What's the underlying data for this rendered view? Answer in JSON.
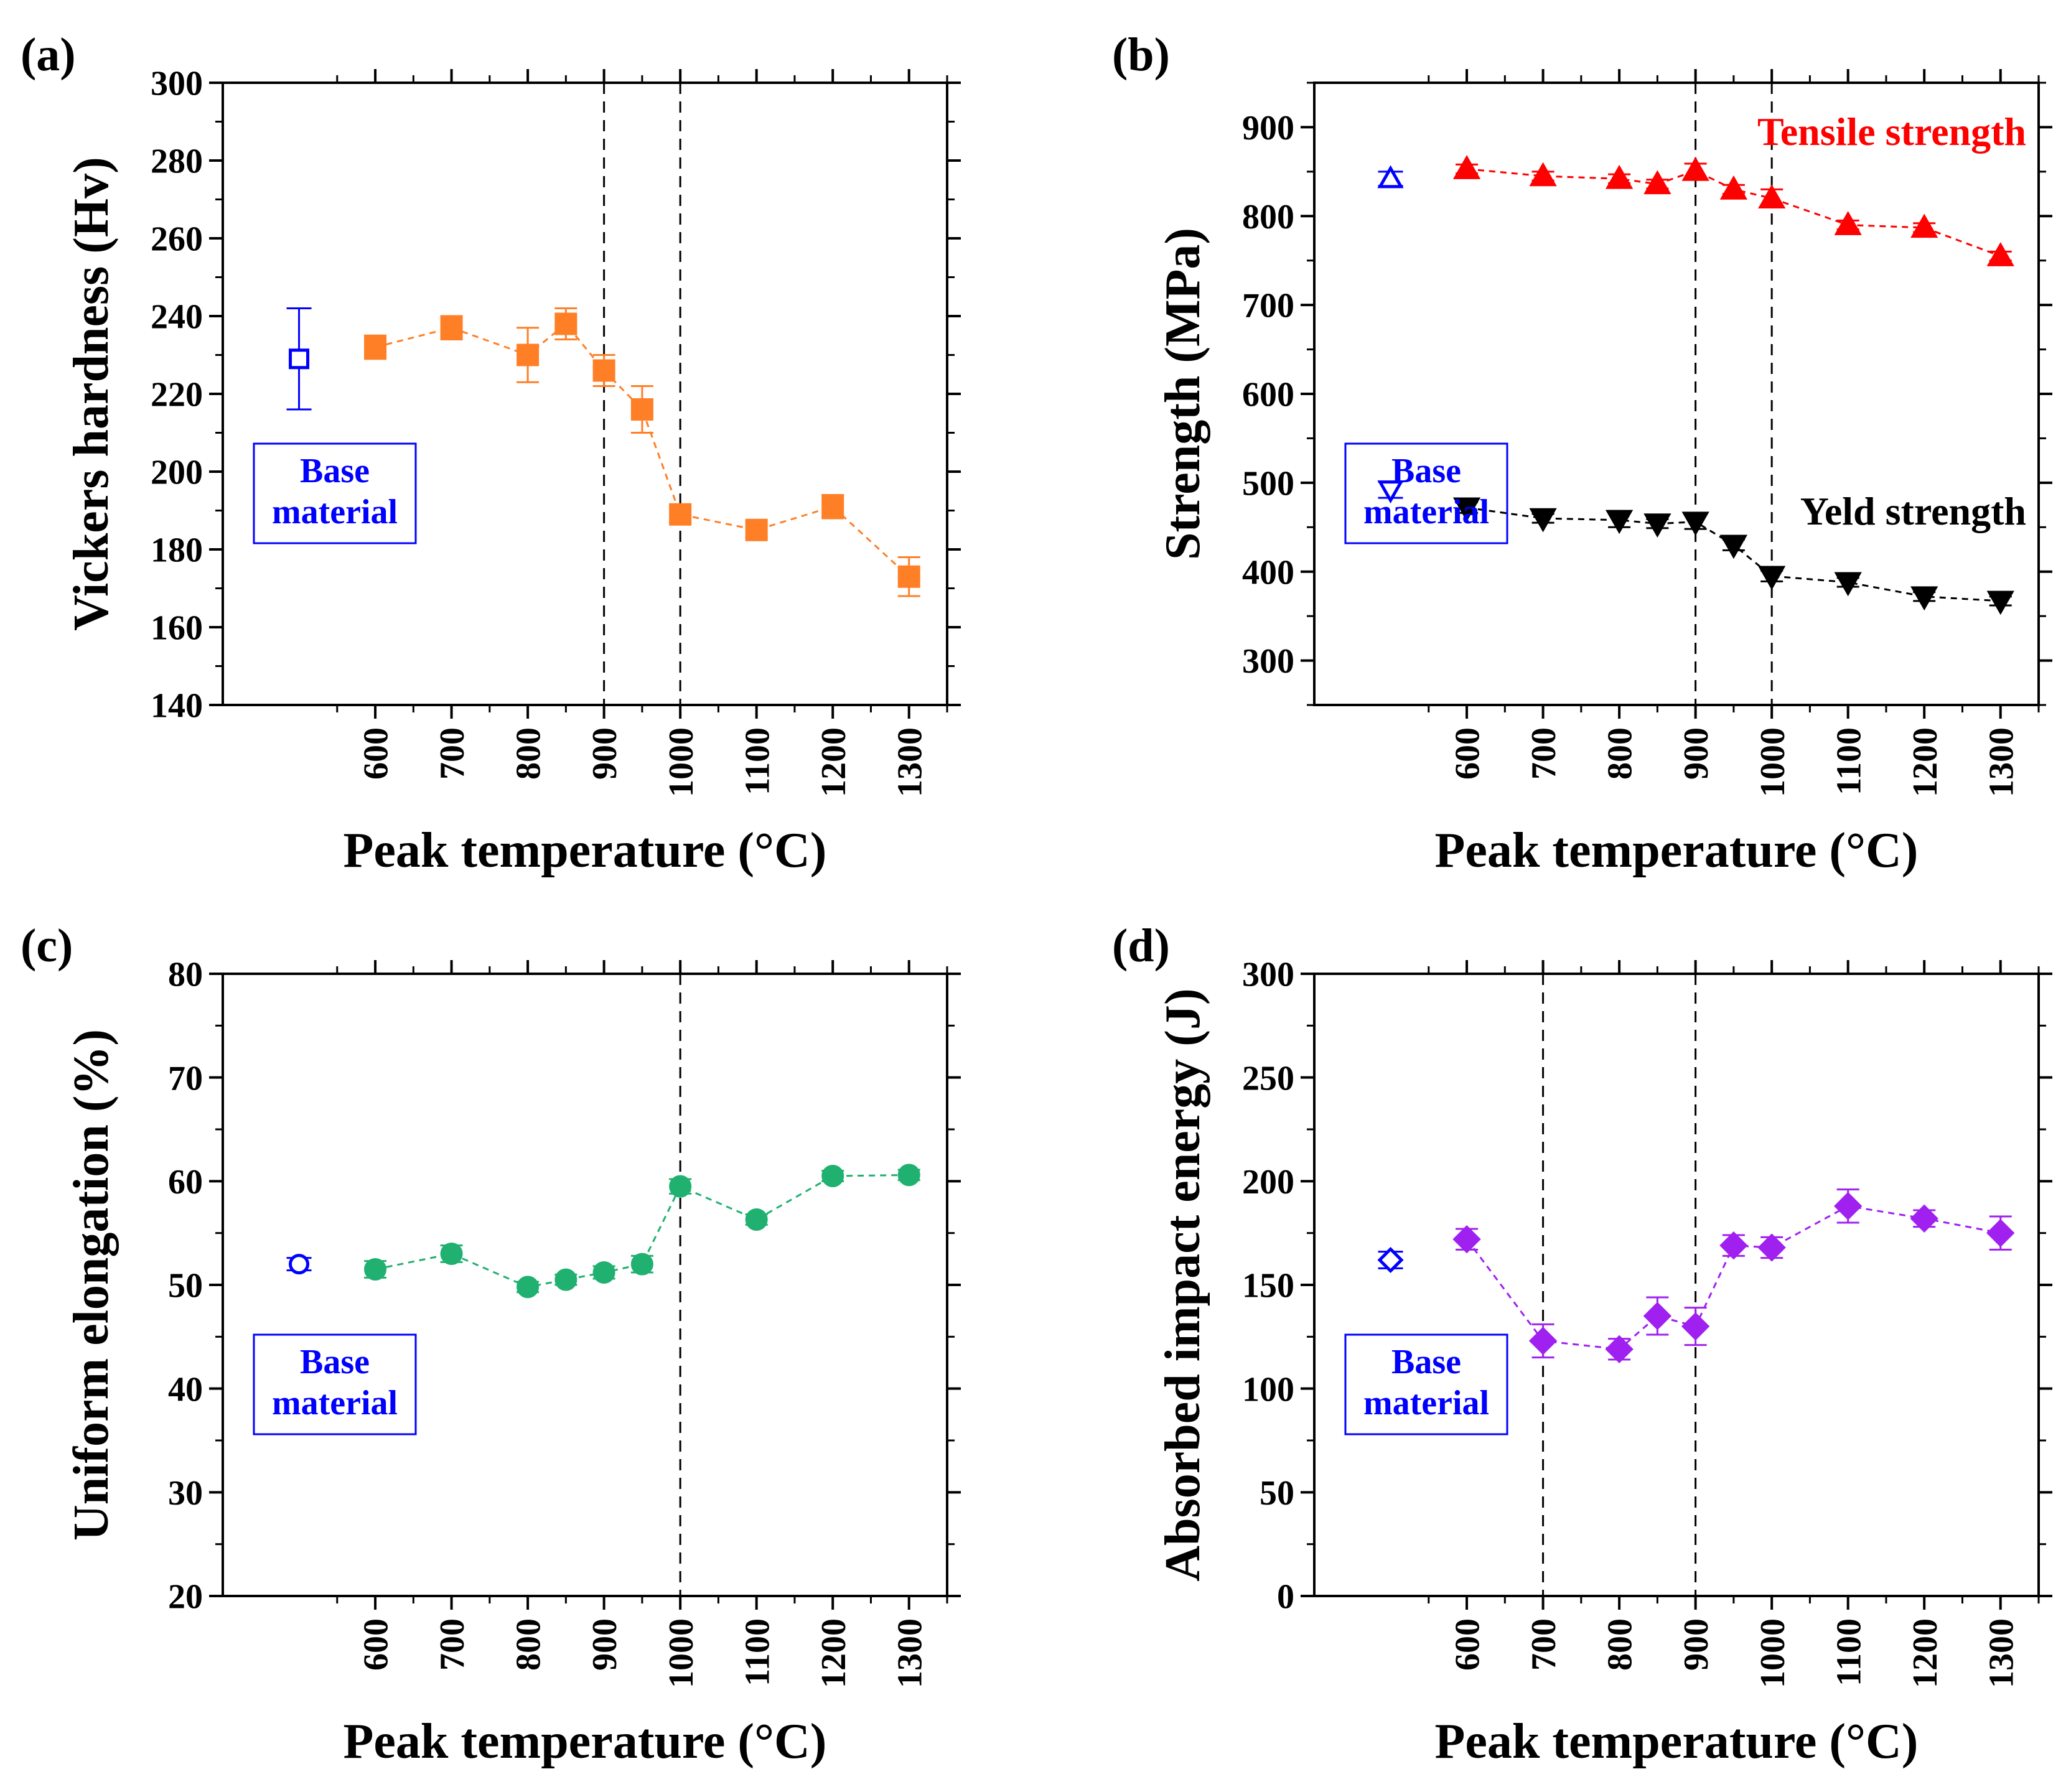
{
  "colors": {
    "axis": "#000000",
    "guide": "#000000",
    "base_marker": "#0000ff",
    "hardness": "#ff7f27",
    "tensile": "#ff0000",
    "yield": "#000000",
    "elongation": "#20b070",
    "impact": "#a020f0"
  },
  "chart_data": [
    {
      "id": "a",
      "type": "scatter",
      "panel_label": "(a)",
      "xlabel": "Peak temperature (°C)",
      "ylabel": "Vickers hardness (Hv)",
      "ylim": [
        140,
        300
      ],
      "yticks": [
        140,
        160,
        180,
        200,
        220,
        240,
        260,
        280,
        300
      ],
      "ytick_labels": [
        "140",
        "160",
        "180",
        "200",
        "220",
        "240",
        "260",
        "280",
        "300"
      ],
      "xlim": [
        400,
        1350
      ],
      "xticks": [
        600,
        700,
        800,
        900,
        1000,
        1100,
        1200,
        1300
      ],
      "xtick_labels": [
        "600",
        "700",
        "800",
        "900",
        "1000",
        "1100",
        "1200",
        "1300"
      ],
      "vlines": [
        900,
        1000
      ],
      "legend_box": "Base\nmaterial",
      "base_x": 500,
      "base_series": [
        {
          "name": "Base material",
          "value": 229,
          "err": 13,
          "marker": "square",
          "color_key": "base_marker"
        }
      ],
      "series": [
        {
          "name": "Vickers hardness",
          "color_key": "hardness",
          "marker": "square",
          "x": [
            600,
            700,
            800,
            850,
            900,
            950,
            1000,
            1100,
            1200,
            1300
          ],
          "values": [
            232,
            237,
            230,
            238,
            226,
            216,
            189,
            185,
            191,
            173
          ],
          "err": [
            3,
            3,
            7,
            4,
            4,
            6,
            2,
            2,
            3,
            5
          ]
        }
      ]
    },
    {
      "id": "b",
      "type": "scatter",
      "panel_label": "(b)",
      "xlabel": "Peak temperature (°C)",
      "ylabel": "Strength (MPa)",
      "ylim": [
        250,
        950
      ],
      "yticks": [
        300,
        400,
        500,
        600,
        700,
        800,
        900
      ],
      "ytick_labels": [
        "300",
        "400",
        "500",
        "600",
        "700",
        "800",
        "900"
      ],
      "xlim": [
        400,
        1350
      ],
      "xticks": [
        600,
        700,
        800,
        900,
        1000,
        1100,
        1200,
        1300
      ],
      "xtick_labels": [
        "600",
        "700",
        "800",
        "900",
        "1000",
        "1100",
        "1200",
        "1300"
      ],
      "vlines": [
        900,
        1000
      ],
      "legend_box": "Base\nmaterial",
      "base_x": 500,
      "base_series": [
        {
          "name": "Base tensile",
          "value": 842,
          "err": 8,
          "marker": "triangle-up",
          "color_key": "base_marker"
        },
        {
          "name": "Base yield",
          "value": 492,
          "err": 9,
          "marker": "triangle-down",
          "color_key": "base_marker"
        }
      ],
      "series": [
        {
          "name": "Tensile strength",
          "color_key": "tensile",
          "marker": "triangle-up",
          "x": [
            600,
            700,
            800,
            850,
            900,
            950,
            1000,
            1100,
            1200,
            1300
          ],
          "values": [
            853,
            845,
            842,
            836,
            851,
            830,
            820,
            790,
            787,
            755
          ],
          "err": [
            5,
            5,
            5,
            5,
            8,
            5,
            10,
            5,
            5,
            5
          ]
        },
        {
          "name": "Yeld strength",
          "color_key": "yield",
          "marker": "triangle-down",
          "x": [
            600,
            700,
            800,
            850,
            900,
            950,
            1000,
            1100,
            1200,
            1300
          ],
          "values": [
            472,
            460,
            458,
            454,
            456,
            430,
            395,
            388,
            372,
            367
          ],
          "err": [
            6,
            5,
            8,
            5,
            8,
            6,
            6,
            5,
            5,
            5
          ]
        }
      ],
      "annotations": [
        "Tensile strength",
        "Yeld strength"
      ]
    },
    {
      "id": "c",
      "type": "scatter",
      "panel_label": "(c)",
      "xlabel": "Peak temperature (°C)",
      "ylabel": "Uniform elongation (%)",
      "ylim": [
        20,
        80
      ],
      "yticks": [
        20,
        30,
        40,
        50,
        60,
        70,
        80
      ],
      "ytick_labels": [
        "20",
        "30",
        "40",
        "50",
        "60",
        "70",
        "80"
      ],
      "xlim": [
        400,
        1350
      ],
      "xticks": [
        600,
        700,
        800,
        900,
        1000,
        1100,
        1200,
        1300
      ],
      "xtick_labels": [
        "600",
        "700",
        "800",
        "900",
        "1000",
        "1100",
        "1200",
        "1300"
      ],
      "vlines": [
        1000
      ],
      "legend_box": "Base\nmaterial",
      "base_x": 500,
      "base_series": [
        {
          "name": "Base material",
          "value": 52,
          "err": 0.6,
          "marker": "circle",
          "color_key": "base_marker"
        }
      ],
      "series": [
        {
          "name": "Uniform elongation",
          "color_key": "elongation",
          "marker": "circle",
          "x": [
            600,
            700,
            800,
            850,
            900,
            950,
            1000,
            1100,
            1200,
            1300
          ],
          "values": [
            51.5,
            53,
            49.8,
            50.5,
            51.2,
            52,
            59.5,
            56.3,
            60.5,
            60.6
          ],
          "err": [
            0.8,
            0.8,
            0.5,
            0.5,
            0.6,
            0.8,
            0.7,
            0.5,
            0.5,
            0.5
          ]
        }
      ]
    },
    {
      "id": "d",
      "type": "scatter",
      "panel_label": "(d)",
      "xlabel": "Peak temperature (°C)",
      "ylabel": "Absorbed impact energy (J)",
      "ylim": [
        0,
        300
      ],
      "yticks": [
        0,
        50,
        100,
        150,
        200,
        250,
        300
      ],
      "ytick_labels": [
        "0",
        "50",
        "100",
        "150",
        "200",
        "250",
        "300"
      ],
      "xlim": [
        400,
        1350
      ],
      "xticks": [
        600,
        700,
        800,
        900,
        1000,
        1100,
        1200,
        1300
      ],
      "xtick_labels": [
        "600",
        "700",
        "800",
        "900",
        "1000",
        "1100",
        "1200",
        "1300"
      ],
      "vlines": [
        700,
        900
      ],
      "legend_box": "Base\nmaterial",
      "base_x": 500,
      "base_series": [
        {
          "name": "Base material",
          "value": 162,
          "err": 4,
          "marker": "diamond",
          "color_key": "base_marker"
        }
      ],
      "series": [
        {
          "name": "Absorbed impact energy",
          "color_key": "impact",
          "marker": "diamond",
          "x": [
            600,
            700,
            800,
            850,
            900,
            950,
            1000,
            1100,
            1200,
            1300
          ],
          "values": [
            172,
            123,
            119,
            135,
            130,
            169,
            168,
            188,
            182,
            175
          ],
          "err": [
            5,
            8,
            5,
            9,
            9,
            5,
            5,
            8,
            4,
            8
          ]
        }
      ]
    }
  ]
}
